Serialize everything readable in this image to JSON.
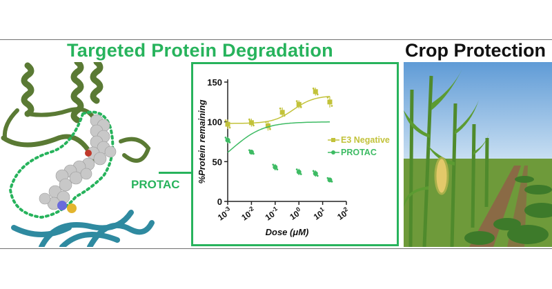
{
  "headings": {
    "left": "Targeted Protein Degradation",
    "right": "Crop Protection"
  },
  "protein_figure": {
    "label": "PROTAC",
    "colors": {
      "helix": "#5a7a34",
      "sheet": "#2f8aa0",
      "outline": "#27b35c"
    }
  },
  "chart_data": {
    "type": "scatter",
    "title": "",
    "xlabel": "Dose (μM)",
    "ylabel": "%Protein remaining",
    "x_scale": "log10",
    "xlim": [
      0.001,
      100
    ],
    "ylim": [
      0,
      150
    ],
    "x_ticks": [
      {
        "base": "10",
        "exp": "-3",
        "value": 0.001
      },
      {
        "base": "10",
        "exp": "-2",
        "value": 0.01
      },
      {
        "base": "10",
        "exp": "-1",
        "value": 0.1
      },
      {
        "base": "10",
        "exp": "0",
        "value": 1
      },
      {
        "base": "10",
        "exp": "1",
        "value": 10
      },
      {
        "base": "10",
        "exp": "2",
        "value": 100
      }
    ],
    "y_ticks": [
      "0",
      "50",
      "100",
      "150"
    ],
    "series": [
      {
        "name": "E3 Negative",
        "color": "#c2c23a",
        "points": [
          {
            "x": 0.001,
            "y": 97,
            "err": 6
          },
          {
            "x": 0.01,
            "y": 99,
            "err": 5
          },
          {
            "x": 0.05,
            "y": 95,
            "err": 6
          },
          {
            "x": 0.2,
            "y": 112,
            "err": 6
          },
          {
            "x": 1,
            "y": 122,
            "err": 5
          },
          {
            "x": 5,
            "y": 138,
            "err": 5
          },
          {
            "x": 20,
            "y": 125,
            "err": 7
          }
        ],
        "fit": {
          "bottom": 98,
          "top": 133,
          "ec50": 0.6,
          "hill": 1.0
        }
      },
      {
        "name": "PROTAC",
        "color": "#3dbb63",
        "points": [
          {
            "x": 0.001,
            "y": 77,
            "err": 4
          },
          {
            "x": 0.01,
            "y": 62,
            "err": 3
          },
          {
            "x": 0.1,
            "y": 43,
            "err": 4
          },
          {
            "x": 1,
            "y": 37,
            "err": 4
          },
          {
            "x": 5,
            "y": 35,
            "err": 4
          },
          {
            "x": 20,
            "y": 27,
            "err": 3
          }
        ],
        "fit": {
          "bottom": 32,
          "top": 100,
          "ec50": 0.0015,
          "hill": 0.65
        }
      }
    ],
    "legend_position": "right"
  },
  "crop_photo": {
    "caption": "",
    "colors": {
      "sky": "#7fb2e0",
      "field": "#5f8e35",
      "soil": "#8a6a45"
    }
  }
}
